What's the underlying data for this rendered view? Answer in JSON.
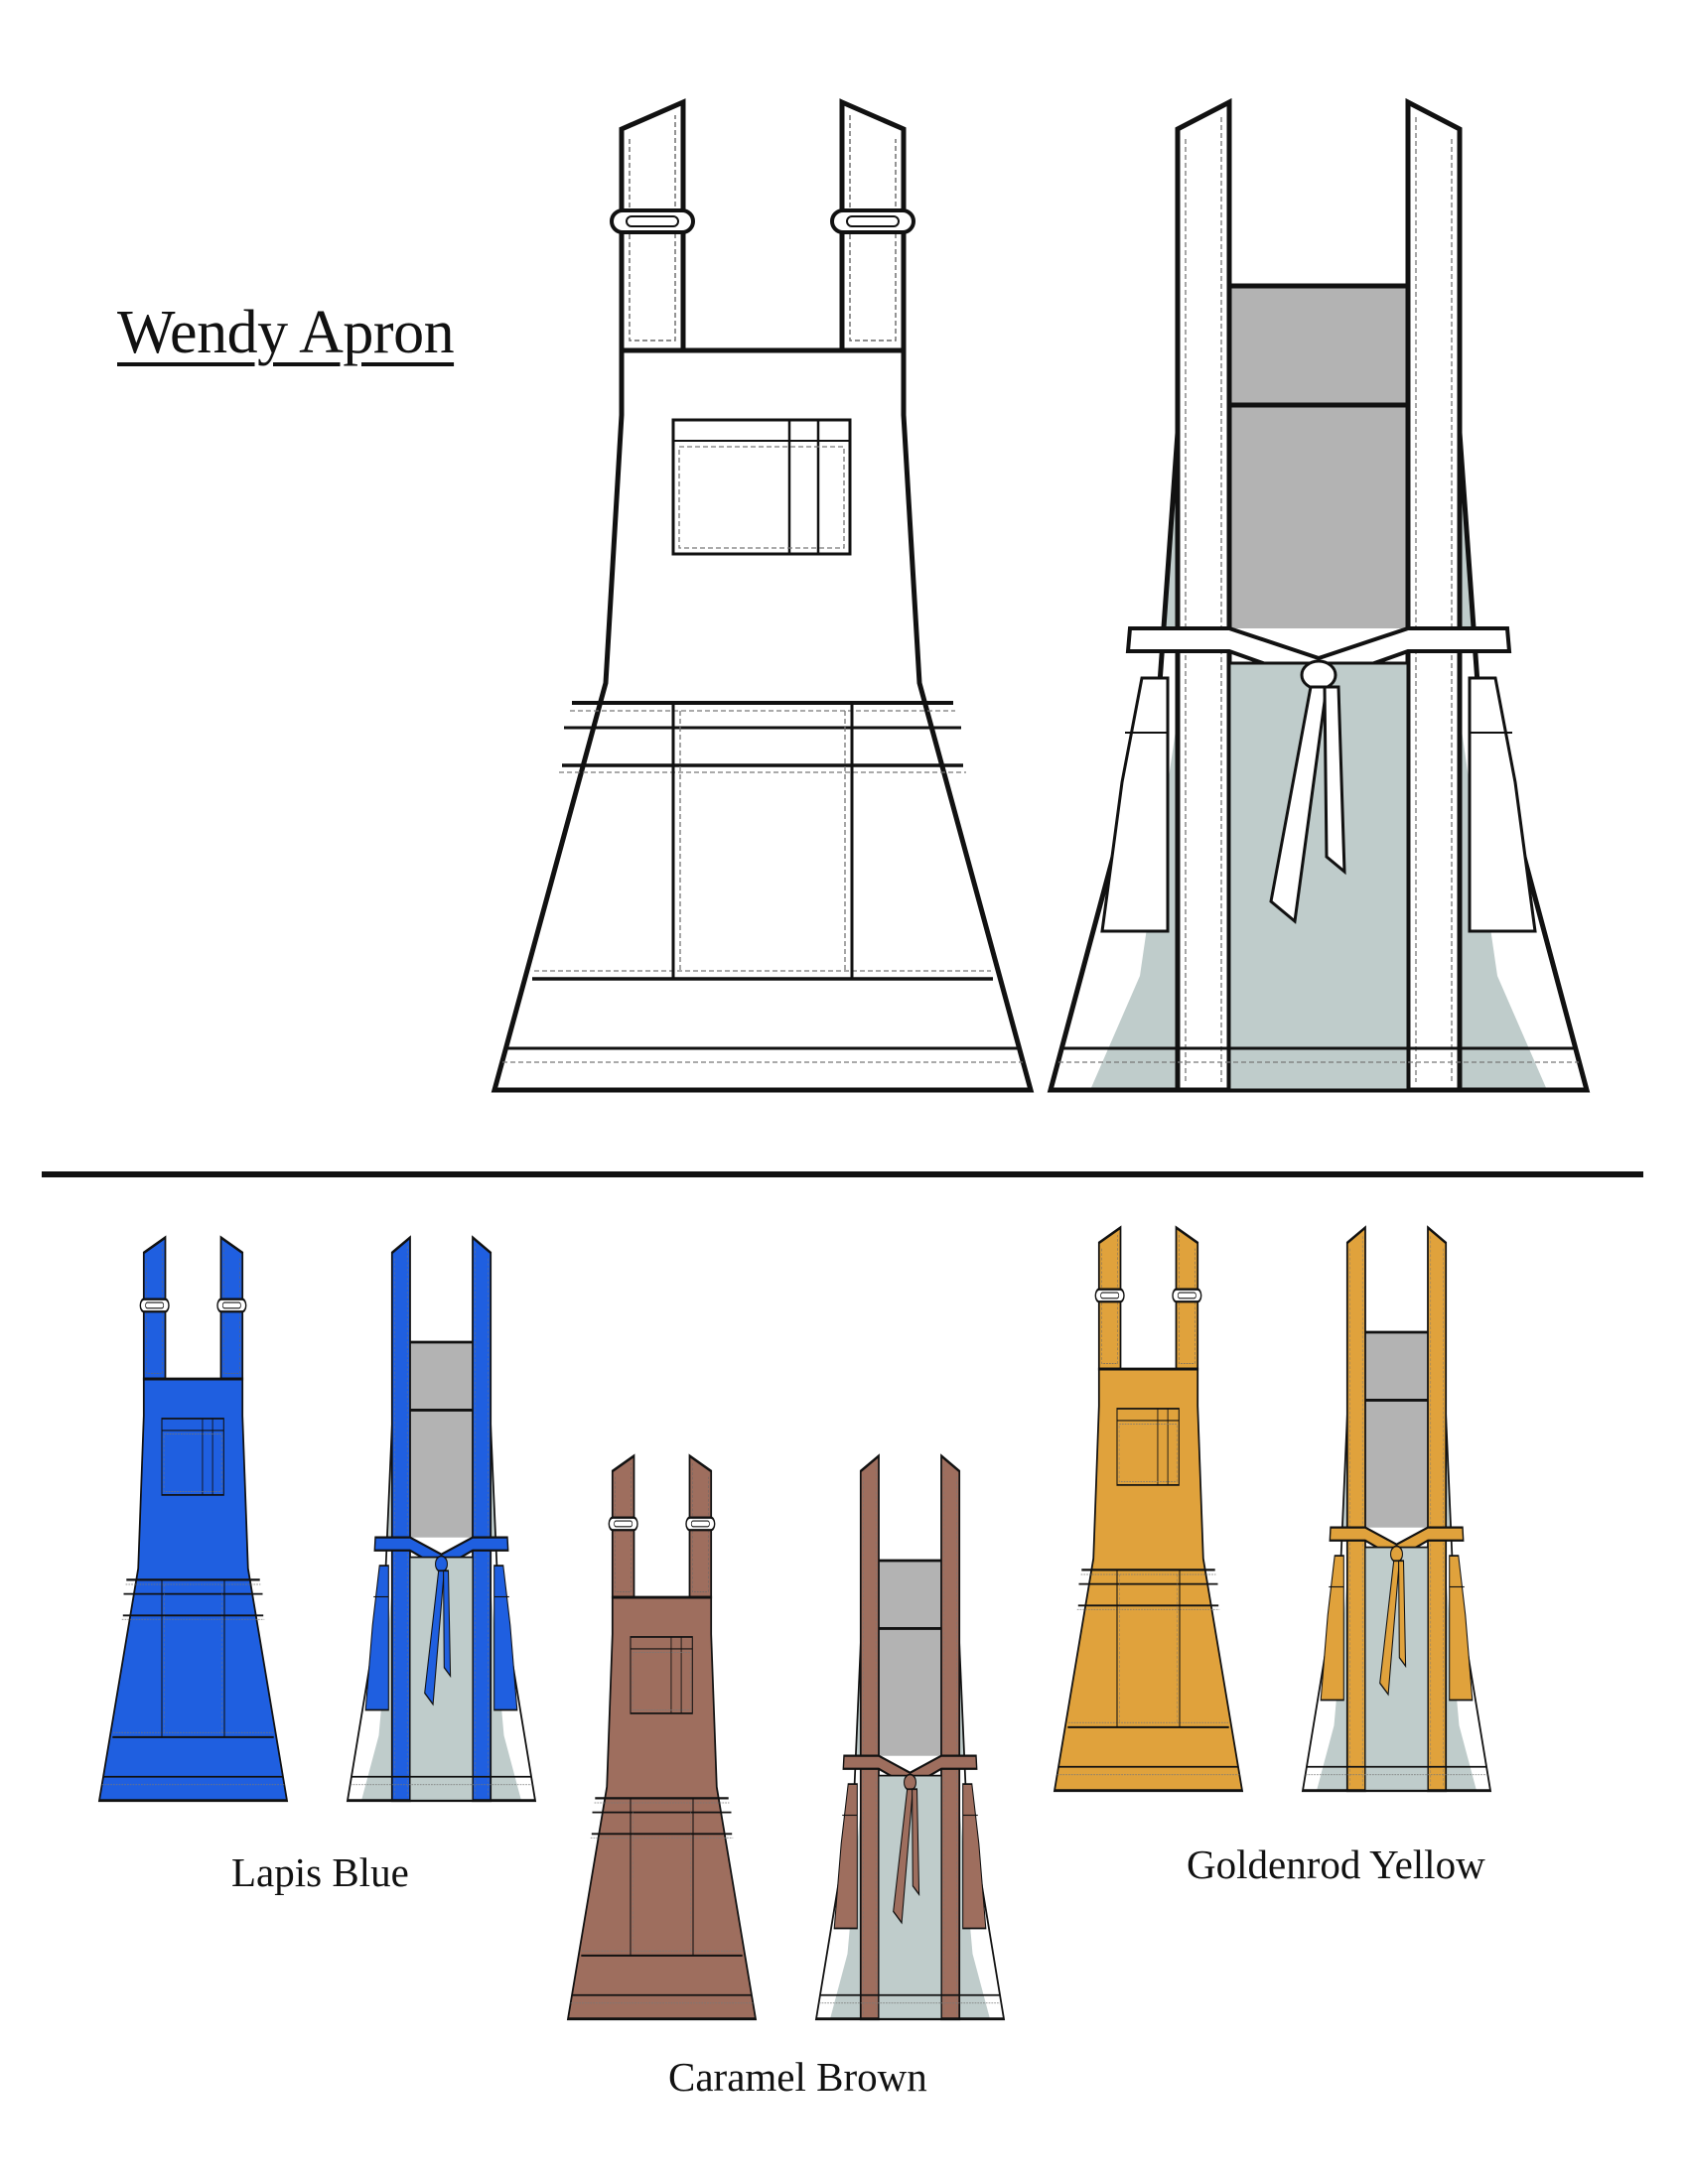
{
  "document": {
    "title": "Wendy Apron"
  },
  "colorways": [
    {
      "name": "Lapis Blue",
      "fill": "#1f5fe0"
    },
    {
      "name": "Caramel Brown",
      "fill": "#9e6e5e"
    },
    {
      "name": "Goldenrod Yellow",
      "fill": "#e0a23c"
    }
  ],
  "palette": {
    "outline": "#111111",
    "lining": "#bfcccb",
    "neckline": "#b3b3b3",
    "line_art_fill": "#ffffff"
  }
}
